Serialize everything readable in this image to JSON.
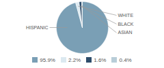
{
  "chart_data": {
    "type": "pie",
    "categories": [
      "HISPANIC",
      "WHITE",
      "BLACK",
      "ASIAN"
    ],
    "values": [
      95.9,
      2.2,
      1.6,
      0.4
    ],
    "value_labels": [
      "95.9%",
      "2.2%",
      "1.6%",
      "0.4%"
    ],
    "colors": [
      "#7a9fb5",
      "#dce9f0",
      "#2e4d6b",
      "#b8cdd8"
    ],
    "legend": "bottom"
  }
}
